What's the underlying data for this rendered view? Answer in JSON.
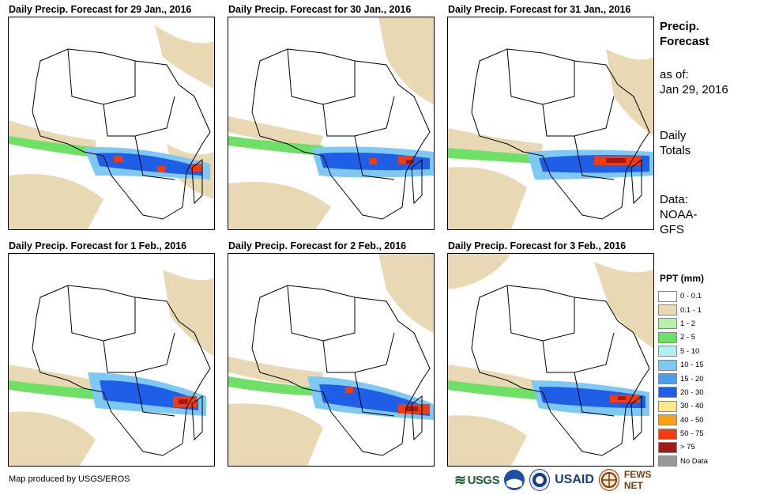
{
  "panels": [
    {
      "title": "Daily Precip. Forecast for 29 Jan., 2016"
    },
    {
      "title": "Daily Precip. Forecast for 30 Jan., 2016"
    },
    {
      "title": "Daily Precip. Forecast for 31 Jan., 2016"
    },
    {
      "title": "Daily Precip. Forecast for 1 Feb., 2016"
    },
    {
      "title": "Daily Precip. Forecast for 2 Feb., 2016"
    },
    {
      "title": "Daily Precip. Forecast for 3 Feb., 2016"
    }
  ],
  "side": {
    "title_line1": "Precip.",
    "title_line2": "Forecast",
    "asof_label": "as of:",
    "asof_date": "Jan 29, 2016",
    "totals_line1": "Daily",
    "totals_line2": "Totals",
    "data_line1": "Data:",
    "data_line2": "NOAA-",
    "data_line3": "GFS"
  },
  "legend": {
    "title": "PPT (mm)",
    "items": [
      {
        "label": "0 - 0.1",
        "color": "#ffffff"
      },
      {
        "label": "0.1 - 1",
        "color": "#e8d8b4"
      },
      {
        "label": "1 - 2",
        "color": "#b8f0a8"
      },
      {
        "label": "2 - 5",
        "color": "#6ee066"
      },
      {
        "label": "5 - 10",
        "color": "#b0f0f4"
      },
      {
        "label": "10 - 15",
        "color": "#7ec8f4"
      },
      {
        "label": "15 - 20",
        "color": "#4a9ef0"
      },
      {
        "label": "20 - 30",
        "color": "#1f5fe8"
      },
      {
        "label": "30 - 40",
        "color": "#fde98a"
      },
      {
        "label": "40 - 50",
        "color": "#f5a21a"
      },
      {
        "label": "50 - 75",
        "color": "#f03c10"
      },
      {
        "label": "> 75",
        "color": "#a01a1a"
      },
      {
        "label": "No Data",
        "color": "#999999"
      }
    ]
  },
  "credit": "Map produced by USGS/EROS",
  "logos": {
    "usgs": "USGS",
    "usaid": "USAID",
    "fews": "FEWS NET"
  }
}
